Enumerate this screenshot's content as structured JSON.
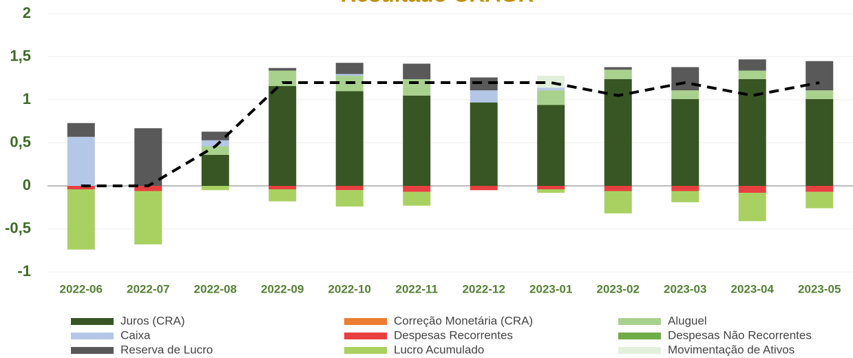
{
  "chart_data": {
    "type": "bar",
    "stacked": true,
    "title": "Resultado CRAGR",
    "categories": [
      "2022-06",
      "2022-07",
      "2022-08",
      "2022-09",
      "2022-10",
      "2022-11",
      "2022-12",
      "2023-01",
      "2023-02",
      "2023-03",
      "2023-04",
      "2023-05"
    ],
    "ylim": [
      -1,
      2
    ],
    "yticks": [
      -1,
      {
        "value": -0.5,
        "label": "-0,5"
      },
      0,
      {
        "value": 0.5,
        "label": "0,5"
      },
      1,
      {
        "value": 1.5,
        "label": "1,5"
      },
      2
    ],
    "grid": true,
    "legend": "bottom",
    "series": [
      {
        "name": "Juros (CRA)",
        "color": "#375623",
        "values": [
          0,
          0,
          0.36,
          1.16,
          1.1,
          1.05,
          0.97,
          0.94,
          1.24,
          1.01,
          1.24,
          1.01
        ]
      },
      {
        "name": "Correção Monetária (CRA)",
        "color": "#ed7d31",
        "values": [
          0,
          0,
          0,
          0,
          0,
          0,
          0,
          0,
          0,
          0,
          0,
          0
        ]
      },
      {
        "name": "Aluguel",
        "color": "#a9d18e",
        "values": [
          0,
          0,
          0.1,
          0.18,
          0.18,
          0.19,
          0,
          0.17,
          0.11,
          0.1,
          0.1,
          0.1
        ]
      },
      {
        "name": "Caixa",
        "color": "#b4c7e7",
        "values": [
          0.57,
          0,
          0.07,
          0,
          0.02,
          0,
          0.14,
          0.03,
          0,
          0,
          0,
          0
        ]
      },
      {
        "name": "Despesas Recorrentes",
        "color": "#e84040",
        "values": [
          -0.04,
          -0.06,
          0,
          -0.04,
          -0.05,
          -0.07,
          -0.05,
          -0.04,
          -0.06,
          -0.06,
          -0.08,
          -0.07
        ]
      },
      {
        "name": "Despesas Não Recorrentes",
        "color": "#70ad47",
        "values": [
          0,
          0,
          0,
          0,
          0,
          0,
          0,
          0,
          0,
          0,
          0,
          0
        ]
      },
      {
        "name": "Reserva de Lucro",
        "color": "#595959",
        "values": [
          0.16,
          0.67,
          0.1,
          0.03,
          0.13,
          0.18,
          0.15,
          0,
          0.03,
          0.27,
          0.13,
          0.34
        ]
      },
      {
        "name": "Lucro Acumulado",
        "color": "#a9d162",
        "values": [
          -0.7,
          -0.62,
          -0.05,
          -0.14,
          -0.19,
          -0.16,
          0,
          -0.04,
          -0.26,
          -0.13,
          -0.33,
          -0.19
        ]
      },
      {
        "name": "Movimentação de Ativos",
        "color": "#e2efda",
        "values": [
          0,
          0,
          0,
          0,
          0,
          0,
          0,
          0.14,
          0,
          0,
          0,
          0
        ]
      }
    ],
    "line": {
      "color": "#000000",
      "values": [
        0,
        0,
        0.46,
        1.2,
        1.2,
        1.2,
        1.2,
        1.2,
        1.05,
        1.2,
        1.05,
        1.2
      ]
    }
  }
}
